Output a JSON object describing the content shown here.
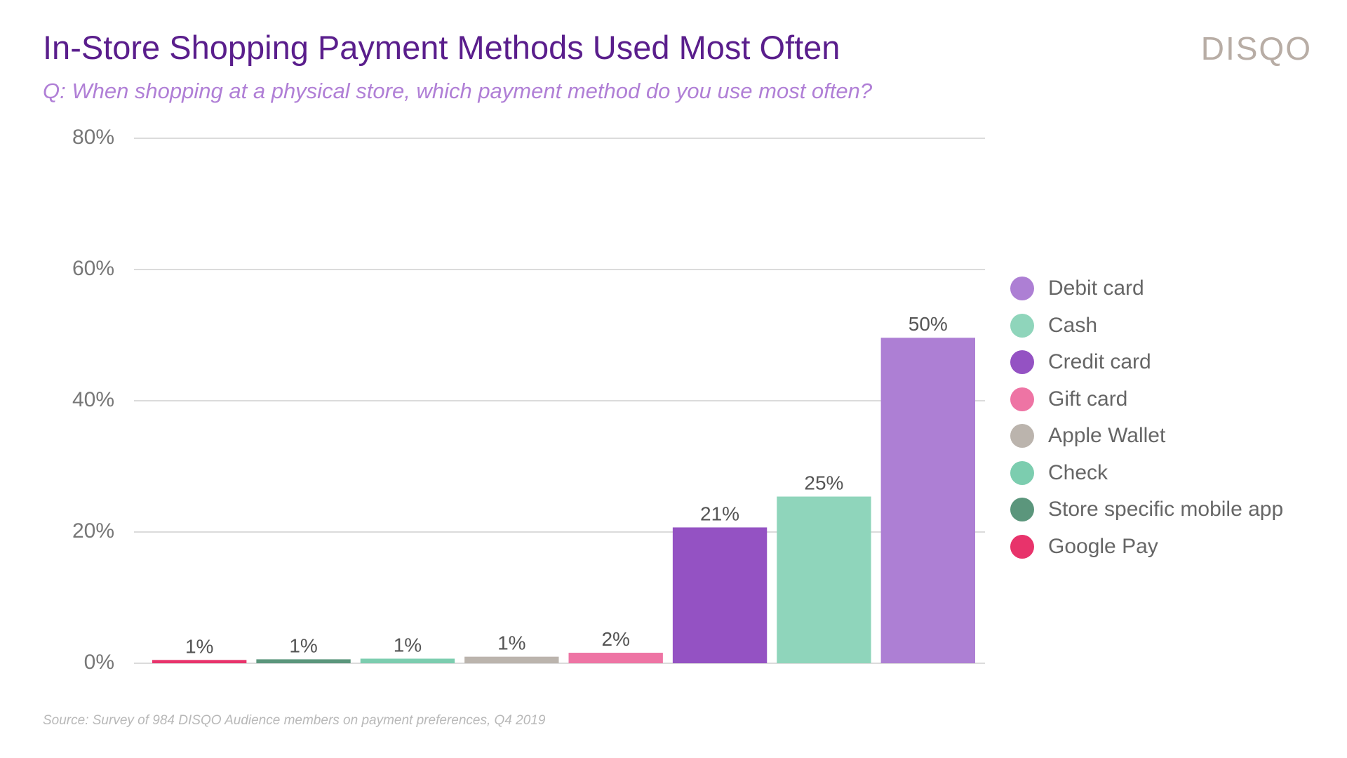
{
  "header": {
    "brand": "DISQO",
    "source": "Source: Survey of 984 DISQO Audience members on payment preferences, Q4 2019"
  },
  "chart_data": {
    "type": "bar",
    "title": "In-Store Shopping Payment Methods Used Most Often",
    "subtitle": "Q: When shopping at a physical store, which payment method do you use most often?",
    "xlabel": "",
    "ylabel": "",
    "ylim": [
      0,
      80
    ],
    "yticks": [
      "80%",
      "60%",
      "40%",
      "20%",
      "0%"
    ],
    "ytick_values": [
      80,
      60,
      40,
      20,
      0
    ],
    "grid": true,
    "legend_position": "right",
    "categories": [
      "Google Pay",
      "Store specific mobile app",
      "Check",
      "Apple Wallet",
      "Gift card",
      "Credit card",
      "Cash",
      "Debit card"
    ],
    "values": [
      0.5,
      0.6,
      0.7,
      1.0,
      1.6,
      20.7,
      25.4,
      49.6
    ],
    "value_labels": [
      "1%",
      "1%",
      "1%",
      "1%",
      "2%",
      "21%",
      "25%",
      "50%"
    ],
    "colors": [
      "#e8336b",
      "#5b967c",
      "#7ccdaf",
      "#bbb4ad",
      "#ee74a4",
      "#9452c3",
      "#8fd5bb",
      "#ad7fd4"
    ],
    "legend": [
      {
        "label": "Debit card",
        "color": "#ad7fd4"
      },
      {
        "label": "Cash",
        "color": "#8fd5bb"
      },
      {
        "label": "Credit card",
        "color": "#9452c3"
      },
      {
        "label": "Gift card",
        "color": "#ee74a4"
      },
      {
        "label": "Apple Wallet",
        "color": "#bbb4ad"
      },
      {
        "label": "Check",
        "color": "#7ccdaf"
      },
      {
        "label": "Store specific mobile app",
        "color": "#5b967c"
      },
      {
        "label": "Google Pay",
        "color": "#e8336b"
      }
    ]
  }
}
